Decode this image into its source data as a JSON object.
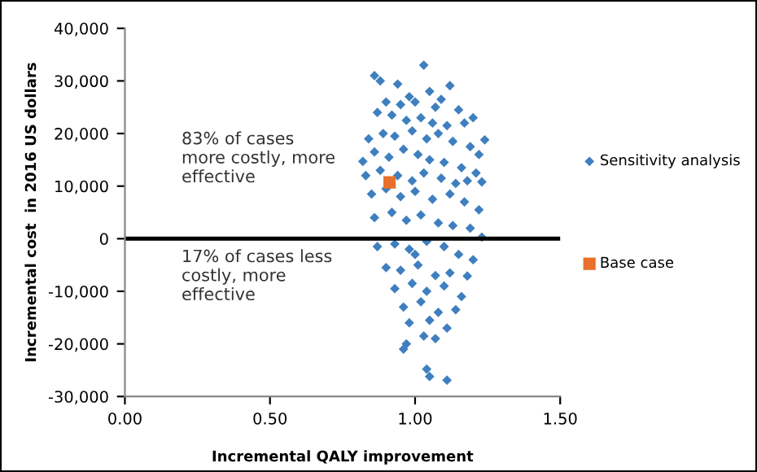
{
  "chart_data": {
    "type": "scatter",
    "xlabel": "Incremental QALY improvement",
    "ylabel": "Incremental cost  in 2016 US dollars",
    "xlim": [
      0,
      1.5
    ],
    "xticks": [
      {
        "value": 0,
        "label": "0.00"
      },
      {
        "value": 0.5,
        "label": "0.50"
      },
      {
        "value": 1,
        "label": "1.00"
      },
      {
        "value": 1.5,
        "label": "1.50"
      }
    ],
    "ylim": [
      -30000,
      40000
    ],
    "yticks": [
      {
        "value": -30000,
        "label": "-30,000"
      },
      {
        "value": -20000,
        "label": "-20,000"
      },
      {
        "value": -10000,
        "label": "-10,000"
      },
      {
        "value": 0,
        "label": "0"
      },
      {
        "value": 10000,
        "label": "10,000"
      },
      {
        "value": 20000,
        "label": "20,000"
      },
      {
        "value": 30000,
        "label": "30,000"
      },
      {
        "value": 40000,
        "label": "40,000"
      }
    ],
    "grid": false,
    "legend": "right",
    "ref_lines": [
      {
        "axis": "y",
        "value": 0,
        "color": "#000000"
      }
    ],
    "annotations": [
      "83% of cases\nmore costly, more\neffective",
      "17% of cases less\ncostly, more\neffective"
    ],
    "series": [
      {
        "name": "Sensitivity analysis",
        "color": "#3f7fbf",
        "marker": "diamond",
        "x": [
          0.86,
          0.88,
          1.03,
          0.94,
          1.12,
          0.98,
          1.05,
          1.09,
          0.9,
          0.95,
          1.0,
          1.07,
          1.15,
          1.2,
          0.87,
          0.92,
          0.97,
          1.02,
          1.06,
          1.11,
          1.17,
          1.24,
          0.84,
          0.89,
          0.93,
          0.99,
          1.04,
          1.08,
          1.13,
          1.19,
          1.22,
          0.82,
          0.86,
          0.91,
          0.96,
          1.01,
          1.05,
          1.1,
          1.16,
          1.21,
          0.83,
          0.88,
          0.94,
          0.99,
          1.03,
          1.09,
          1.14,
          1.18,
          1.23,
          0.85,
          0.9,
          0.95,
          1.0,
          1.06,
          1.12,
          1.17,
          1.22,
          0.86,
          0.92,
          0.97,
          1.02,
          1.08,
          1.13,
          1.19,
          1.23,
          0.87,
          0.93,
          0.98,
          1.04,
          1.1,
          1.15,
          1.2,
          0.9,
          0.95,
          1.01,
          1.07,
          1.12,
          1.18,
          0.93,
          0.99,
          1.04,
          1.1,
          1.16,
          0.96,
          1.02,
          1.08,
          1.14,
          0.98,
          1.05,
          1.11,
          0.96,
          1.03,
          1.07,
          0.97,
          1.04,
          1.05,
          1.11,
          1.0
        ],
        "values": [
          31000,
          30000,
          33000,
          29400,
          29100,
          27000,
          28000,
          26500,
          26000,
          25500,
          26000,
          25000,
          24500,
          23000,
          24000,
          23500,
          22500,
          23000,
          22000,
          21500,
          22000,
          18800,
          19000,
          20000,
          19500,
          20500,
          19000,
          20000,
          18500,
          17500,
          16000,
          14700,
          16500,
          15500,
          17000,
          16000,
          15000,
          14500,
          13500,
          12500,
          12000,
          13000,
          12000,
          11000,
          12500,
          11500,
          10500,
          11000,
          10800,
          8500,
          9500,
          8000,
          9000,
          7500,
          8500,
          7000,
          5500,
          4000,
          5000,
          3500,
          4500,
          3000,
          2500,
          2000,
          300,
          -1500,
          -1000,
          -2000,
          -500,
          -1500,
          -3000,
          -4000,
          -5500,
          -6000,
          -5000,
          -7000,
          -6500,
          -7100,
          -9500,
          -8500,
          -10000,
          -9000,
          -11000,
          -13000,
          -12000,
          -14000,
          -13500,
          -16000,
          -15500,
          -17000,
          -21000,
          -18500,
          -19000,
          -20000,
          -24800,
          -26200,
          -26900,
          -3000
        ]
      },
      {
        "name": "Base case",
        "color": "#e8702a",
        "marker": "square",
        "x": [
          0.912
        ],
        "values": [
          10700
        ]
      }
    ]
  }
}
